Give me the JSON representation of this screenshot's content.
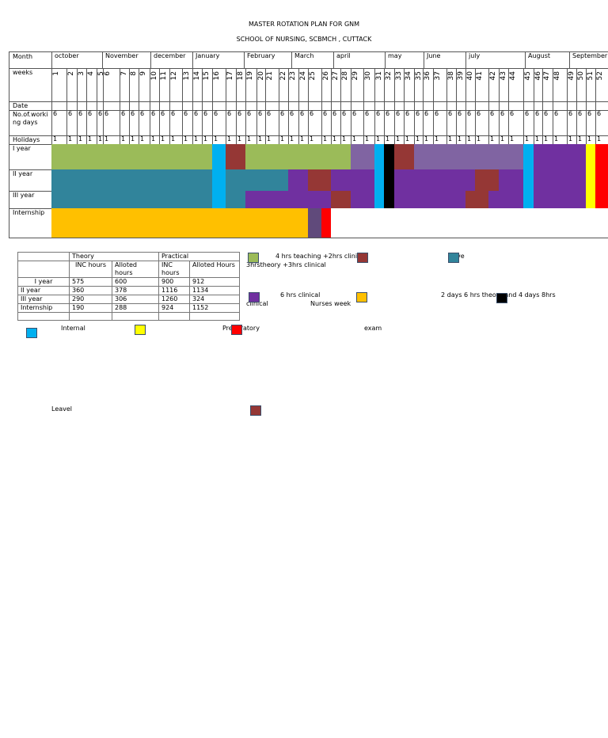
{
  "title": "MASTER ROTATION PLAN FOR GNM",
  "subtitle": "SCHOOL OF NURSING, SCBMCH , CUTTACK",
  "grid": {
    "month_label": "Month",
    "weeks_label": "weeks",
    "date_label": "Date",
    "working_days_label": "No.of.working days",
    "holidays_label": "Holidays",
    "months": [
      "october",
      "November",
      "december",
      "January",
      "February",
      "March",
      "april",
      "may",
      "June",
      "july",
      "August",
      "September"
    ],
    "weeks": [
      "1",
      "2",
      "3",
      "4",
      "5",
      "6",
      "7",
      "8",
      "9",
      "10",
      "11",
      "12",
      "13",
      "14",
      "15",
      "16",
      "17",
      "18",
      "19",
      "20",
      "21",
      "22",
      "23",
      "24",
      "25",
      "26",
      "27",
      "28",
      "29",
      "30",
      "31",
      "32",
      "33",
      "34",
      "35",
      "36",
      "37",
      "38",
      "39",
      "40",
      "41",
      "42",
      "43",
      "44",
      "45",
      "46",
      "47",
      "48",
      "49",
      "50",
      "51",
      "52"
    ],
    "working_days_value": "6",
    "holidays_value": "1",
    "rows": [
      {
        "label": "I year",
        "cells": "GGGGGGGGGGGGGGGBRRGGGGGGGGGGLLBKRRLLLLLLLLLLBPPPPPYX"
      },
      {
        "label": "II year",
        "cells": "TTTTTTTTTTTTTTTBTTTTTTPPRRPPPPBKPPPPPPPPRRPPBPPPPPYX"
      },
      {
        "label": "III year",
        "cells": "TTTTTTTTTTTTTTTBTTPPPPPPPPRRPPBKPPPPPPPRRPPPBPPPPPYX"
      },
      {
        "label": "Internship",
        "cells": "OOOOOOOOOOOOOOOOOOOOOOOODXWWWWWWWWWWWWWWWWWWWWWWWWWW"
      }
    ]
  },
  "colors": {
    "G": "#9bbb59",
    "R": "#953735",
    "T": "#31849b",
    "P": "#7030a0",
    "L": "#8064a2",
    "B": "#00b0f0",
    "K": "#000000",
    "O": "#ffc000",
    "Y": "#ffff00",
    "X": "#ff0000",
    "D": "#604a7b",
    "W": "#ffffff"
  },
  "summary": {
    "theory": "Theory",
    "practical": "Practical",
    "inc_hours": "INC hours",
    "alloted_hours": "Alloted hours",
    "alloted_hours_cap": "Alloted Hours",
    "rows": [
      {
        "label": "I year",
        "t_inc": "575",
        "t_all": "600",
        "p_inc": "900",
        "p_all": "912"
      },
      {
        "label": "II year",
        "t_inc": "360",
        "t_all": "378",
        "p_inc": "1116",
        "p_all": "1134"
      },
      {
        "label": "III year",
        "t_inc": "290",
        "t_all": "306",
        "p_inc": "1260",
        "p_all": "324"
      },
      {
        "label": "Internship",
        "t_inc": "190",
        "t_all": "288",
        "p_inc": "924",
        "p_all": "1152"
      }
    ]
  },
  "legend": {
    "teaching": "4 hrs teaching +2hrs clinical",
    "theory_clinical": "3hrstheory +3hrs clinical",
    "teal_text": "ve",
    "six_clinical": "6 hrs clinical",
    "clinical": "clinical",
    "nurses_week": "Nurses week",
    "two_days": "2 days 6 hrs theory and 4 days 8hrs",
    "internal": "Internal",
    "preparatory": "Preparatory",
    "exam": "exam",
    "leave": "Leavel"
  }
}
